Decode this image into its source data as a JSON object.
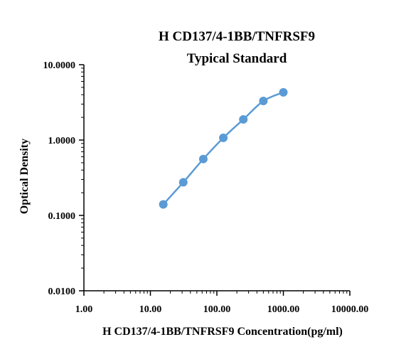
{
  "chart_data": {
    "type": "line",
    "title": "H CD137/4-1BB/TNFRSF9",
    "subtitle": "Typical Standard",
    "xlabel": "H CD137/4-1BB/TNFRSF9 Concentration(pg/ml)",
    "ylabel": "Optical Density",
    "x_scale": "log",
    "y_scale": "log",
    "xlim": [
      1,
      10000
    ],
    "ylim": [
      0.01,
      10
    ],
    "x_ticks": [
      "1.00",
      "10.00",
      "100.00",
      "1000.00",
      "10000.00"
    ],
    "y_ticks": [
      "0.0100",
      "0.1000",
      "1.0000",
      "10.0000"
    ],
    "grid": false,
    "series": [
      {
        "color": "#5b9bd5",
        "x": [
          15.63,
          31.25,
          62.5,
          125,
          250,
          500,
          1000
        ],
        "y": [
          0.14,
          0.275,
          0.56,
          1.07,
          1.88,
          3.3,
          4.3
        ]
      }
    ]
  }
}
